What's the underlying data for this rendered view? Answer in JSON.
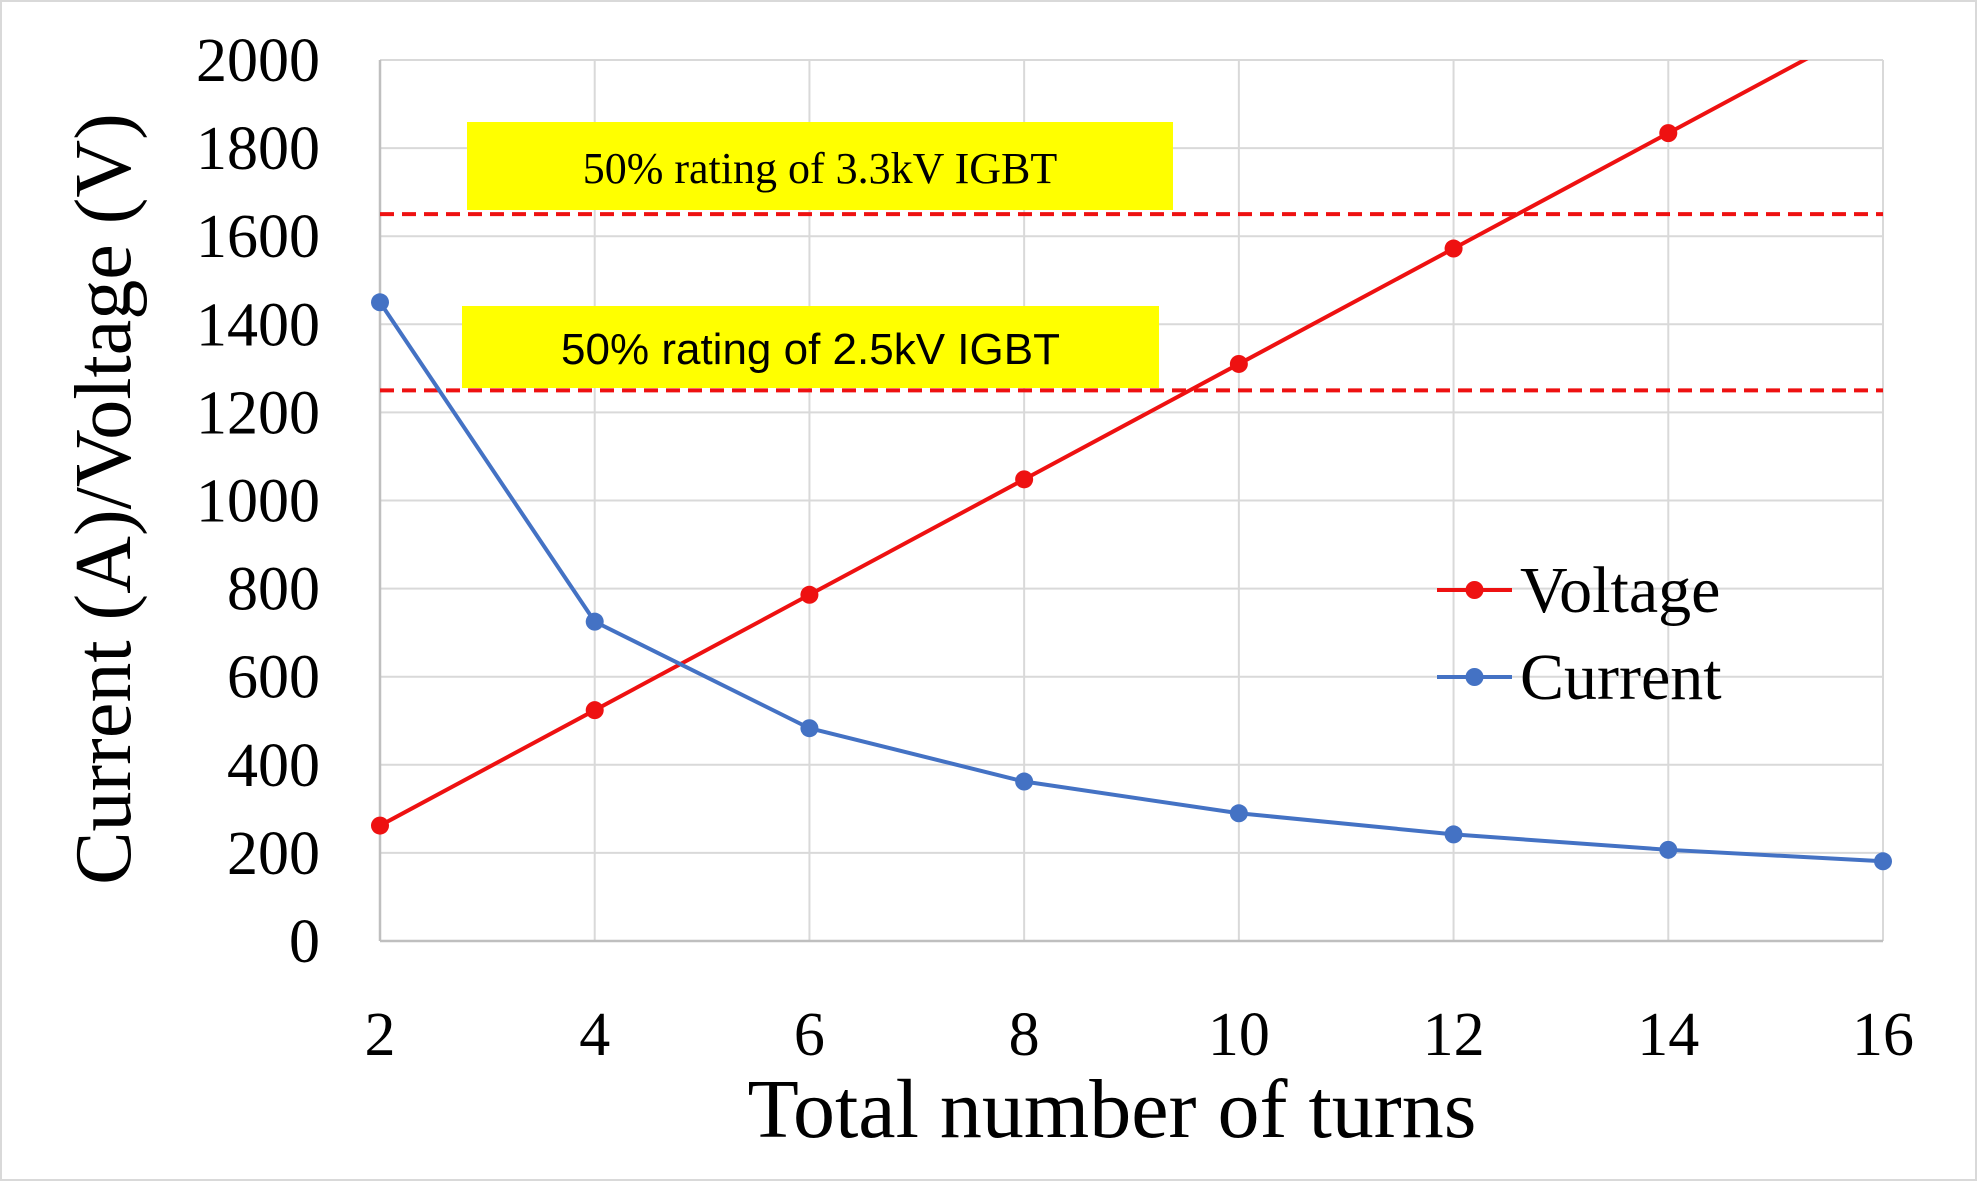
{
  "chart_data": {
    "type": "line",
    "title": "",
    "xlabel": "Total number of turns",
    "ylabel": "Current (A)/Voltage (V)",
    "x": [
      2,
      4,
      6,
      8,
      10,
      12,
      14,
      16
    ],
    "xticks": [
      "2",
      "4",
      "6",
      "8",
      "10",
      "12",
      "14",
      "16"
    ],
    "xlim": [
      2,
      16
    ],
    "ylim": [
      0,
      2000
    ],
    "yticks": [
      "0",
      "200",
      "400",
      "600",
      "800",
      "1000",
      "1200",
      "1400",
      "1600",
      "1800",
      "2000"
    ],
    "grid": true,
    "legend_position": "right",
    "series": [
      {
        "name": "Voltage",
        "color": "#ee1111",
        "values": [
          262,
          524,
          786,
          1048,
          1310,
          1572,
          1834,
          2096
        ]
      },
      {
        "name": "Current",
        "color": "#4472c4",
        "values": [
          1450,
          725,
          483,
          362,
          290,
          242,
          207,
          181
        ]
      }
    ],
    "reference_lines": [
      {
        "label": "50% rating of 3.3kV IGBT",
        "y": 1650,
        "color": "#ee1111",
        "style": "dashed",
        "highlight": "#ffff00",
        "font": "serif"
      },
      {
        "label": "50% rating of 2.5kV IGBT",
        "y": 1250,
        "color": "#ee1111",
        "style": "dashed",
        "highlight": "#ffff00",
        "font": "sans"
      }
    ]
  }
}
